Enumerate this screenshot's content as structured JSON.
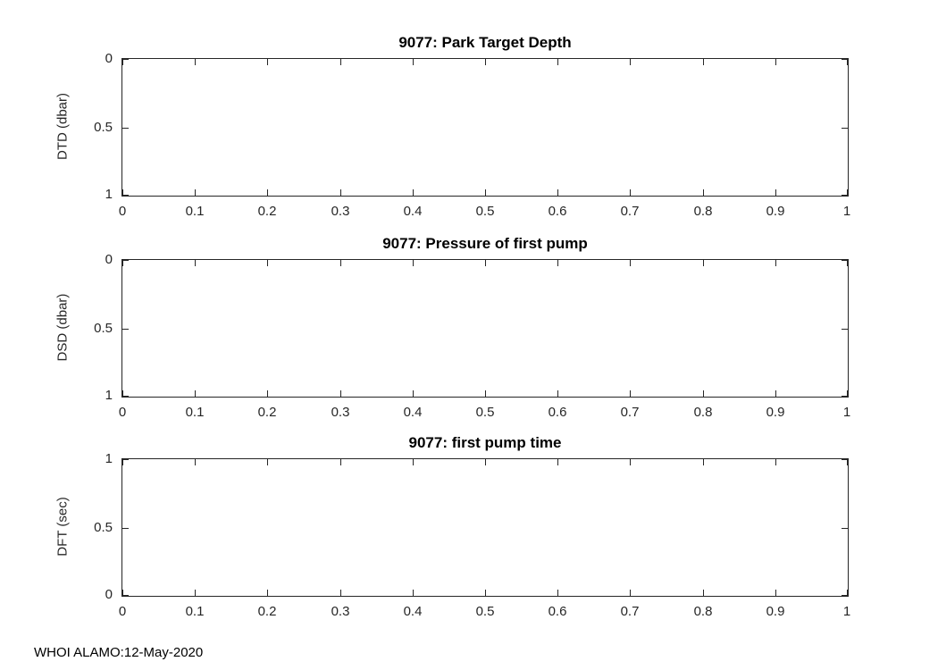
{
  "figure": {
    "footer": "WHOI ALAMO:12-May-2020",
    "background_color": "#ffffff",
    "axis_color": "#262626",
    "title_color": "#000000"
  },
  "chart_data": [
    {
      "type": "line",
      "title": "9077: Park Target Depth",
      "xlabel": "",
      "ylabel": "DTD (dbar)",
      "xlim": [
        0,
        1
      ],
      "ylim": [
        0,
        1
      ],
      "y_axis_reversed": true,
      "xticks": [
        0,
        0.1,
        0.2,
        0.3,
        0.4,
        0.5,
        0.6,
        0.7,
        0.8,
        0.9,
        1
      ],
      "xtick_labels": [
        "0",
        "0.1",
        "0.2",
        "0.3",
        "0.4",
        "0.5",
        "0.6",
        "0.7",
        "0.8",
        "0.9",
        "1"
      ],
      "yticks": [
        0,
        0.5,
        1
      ],
      "ytick_labels": [
        "0",
        "0.5",
        "1"
      ],
      "grid": false,
      "box": true,
      "legend": null,
      "series": []
    },
    {
      "type": "line",
      "title": "9077: Pressure of first pump",
      "xlabel": "",
      "ylabel": "DSD (dbar)",
      "xlim": [
        0,
        1
      ],
      "ylim": [
        0,
        1
      ],
      "y_axis_reversed": true,
      "xticks": [
        0,
        0.1,
        0.2,
        0.3,
        0.4,
        0.5,
        0.6,
        0.7,
        0.8,
        0.9,
        1
      ],
      "xtick_labels": [
        "0",
        "0.1",
        "0.2",
        "0.3",
        "0.4",
        "0.5",
        "0.6",
        "0.7",
        "0.8",
        "0.9",
        "1"
      ],
      "yticks": [
        0,
        0.5,
        1
      ],
      "ytick_labels": [
        "0",
        "0.5",
        "1"
      ],
      "grid": false,
      "box": true,
      "legend": null,
      "series": []
    },
    {
      "type": "line",
      "title": "9077: first pump time",
      "xlabel": "",
      "ylabel": "DFT (sec)",
      "xlim": [
        0,
        1
      ],
      "ylim": [
        0,
        1
      ],
      "y_axis_reversed": false,
      "xticks": [
        0,
        0.1,
        0.2,
        0.3,
        0.4,
        0.5,
        0.6,
        0.7,
        0.8,
        0.9,
        1
      ],
      "xtick_labels": [
        "0",
        "0.1",
        "0.2",
        "0.3",
        "0.4",
        "0.5",
        "0.6",
        "0.7",
        "0.8",
        "0.9",
        "1"
      ],
      "yticks": [
        0,
        0.5,
        1
      ],
      "ytick_labels": [
        "0",
        "0.5",
        "1"
      ],
      "grid": false,
      "box": true,
      "legend": null,
      "series": []
    }
  ]
}
